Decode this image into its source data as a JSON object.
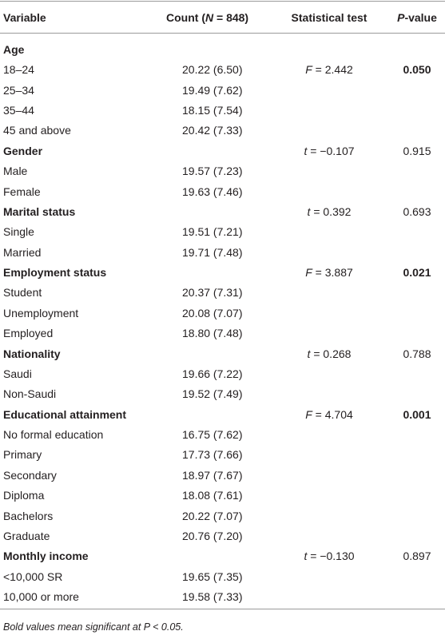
{
  "table": {
    "header": [
      [
        {
          "t": "Variable"
        }
      ],
      [
        {
          "t": "Count ("
        },
        {
          "t": "N",
          "i": true
        },
        {
          "t": " = 848)"
        }
      ],
      [
        {
          "t": "Statistical test"
        }
      ],
      [
        {
          "t": "P",
          "i": true
        },
        {
          "t": "-value"
        }
      ]
    ],
    "rows": [
      {
        "label": "Age",
        "group": true
      },
      {
        "label": "18–24",
        "count": "20.22 (6.50)",
        "test": [
          {
            "t": "F",
            "i": true
          },
          {
            "t": " = 2.442"
          }
        ],
        "p": "0.050",
        "bold": true
      },
      {
        "label": "25–34",
        "count": "19.49 (7.62)"
      },
      {
        "label": "35–44",
        "count": "18.15 (7.54)"
      },
      {
        "label": "45 and above",
        "count": "20.42 (7.33)"
      },
      {
        "label": "Gender",
        "group": true,
        "test": [
          {
            "t": "t",
            "i": true
          },
          {
            "t": " = −0.107"
          }
        ],
        "p": "0.915"
      },
      {
        "label": "Male",
        "count": "19.57 (7.23)"
      },
      {
        "label": "Female",
        "count": "19.63 (7.46)"
      },
      {
        "label": "Marital status",
        "group": true,
        "test": [
          {
            "t": "t",
            "i": true
          },
          {
            "t": " = 0.392"
          }
        ],
        "p": "0.693"
      },
      {
        "label": "Single",
        "count": "19.51 (7.21)"
      },
      {
        "label": "Married",
        "count": "19.71 (7.48)"
      },
      {
        "label": "Employment status",
        "group": true,
        "test": [
          {
            "t": "F",
            "i": true
          },
          {
            "t": " = 3.887"
          }
        ],
        "p": "0.021",
        "bold": true
      },
      {
        "label": "Student",
        "count": "20.37 (7.31)"
      },
      {
        "label": "Unemployment",
        "count": "20.08 (7.07)"
      },
      {
        "label": "Employed",
        "count": "18.80 (7.48)"
      },
      {
        "label": "Nationality",
        "group": true,
        "test": [
          {
            "t": "t",
            "i": true
          },
          {
            "t": " = 0.268"
          }
        ],
        "p": "0.788"
      },
      {
        "label": "Saudi",
        "count": "19.66 (7.22)"
      },
      {
        "label": "Non-Saudi",
        "count": "19.52 (7.49)"
      },
      {
        "label": "Educational attainment",
        "group": true,
        "test": [
          {
            "t": "F",
            "i": true
          },
          {
            "t": " = 4.704"
          }
        ],
        "p": "0.001",
        "bold": true
      },
      {
        "label": "No formal education",
        "count": "16.75 (7.62)"
      },
      {
        "label": "Primary",
        "count": "17.73 (7.66)"
      },
      {
        "label": "Secondary",
        "count": "18.97 (7.67)"
      },
      {
        "label": "Diploma",
        "count": "18.08 (7.61)"
      },
      {
        "label": "Bachelors",
        "count": "20.22 (7.07)"
      },
      {
        "label": "Graduate",
        "count": "20.76 (7.20)"
      },
      {
        "label": "Monthly income",
        "group": true,
        "test": [
          {
            "t": "t",
            "i": true
          },
          {
            "t": " = −0.130"
          }
        ],
        "p": "0.897"
      },
      {
        "label": "<10,000 SR",
        "count": "19.65 (7.35)"
      },
      {
        "label": "10,000 or more",
        "count": "19.58 (7.33)"
      }
    ],
    "footnote": "Bold values mean significant at P < 0.05."
  }
}
